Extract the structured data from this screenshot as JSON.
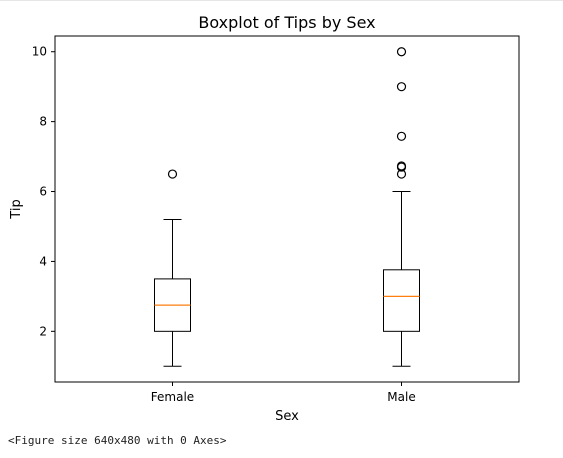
{
  "chart_data": {
    "type": "box",
    "title": "Boxplot of Tips by Sex",
    "xlabel": "Sex",
    "ylabel": "Tip",
    "categories": [
      "Female",
      "Male"
    ],
    "ylim": [
      0.55,
      10.45
    ],
    "yticks": [
      2,
      4,
      6,
      8,
      10
    ],
    "grid": false,
    "boxes": [
      {
        "category": "Female",
        "whislo": 1.0,
        "q1": 2.0,
        "med": 2.75,
        "q3": 3.5,
        "whishi": 5.2,
        "fliers": [
          6.5
        ]
      },
      {
        "category": "Male",
        "whislo": 1.0,
        "q1": 2.0,
        "med": 3.0,
        "q3": 3.76,
        "whishi": 6.0,
        "fliers": [
          6.5,
          6.7,
          6.73,
          7.58,
          9.0,
          10.0
        ]
      }
    ],
    "colors": {
      "median": "#ff7f0e",
      "box": "#000000",
      "flier": "#000000"
    }
  },
  "output_text": "<Figure size 640x480 with 0 Axes>"
}
